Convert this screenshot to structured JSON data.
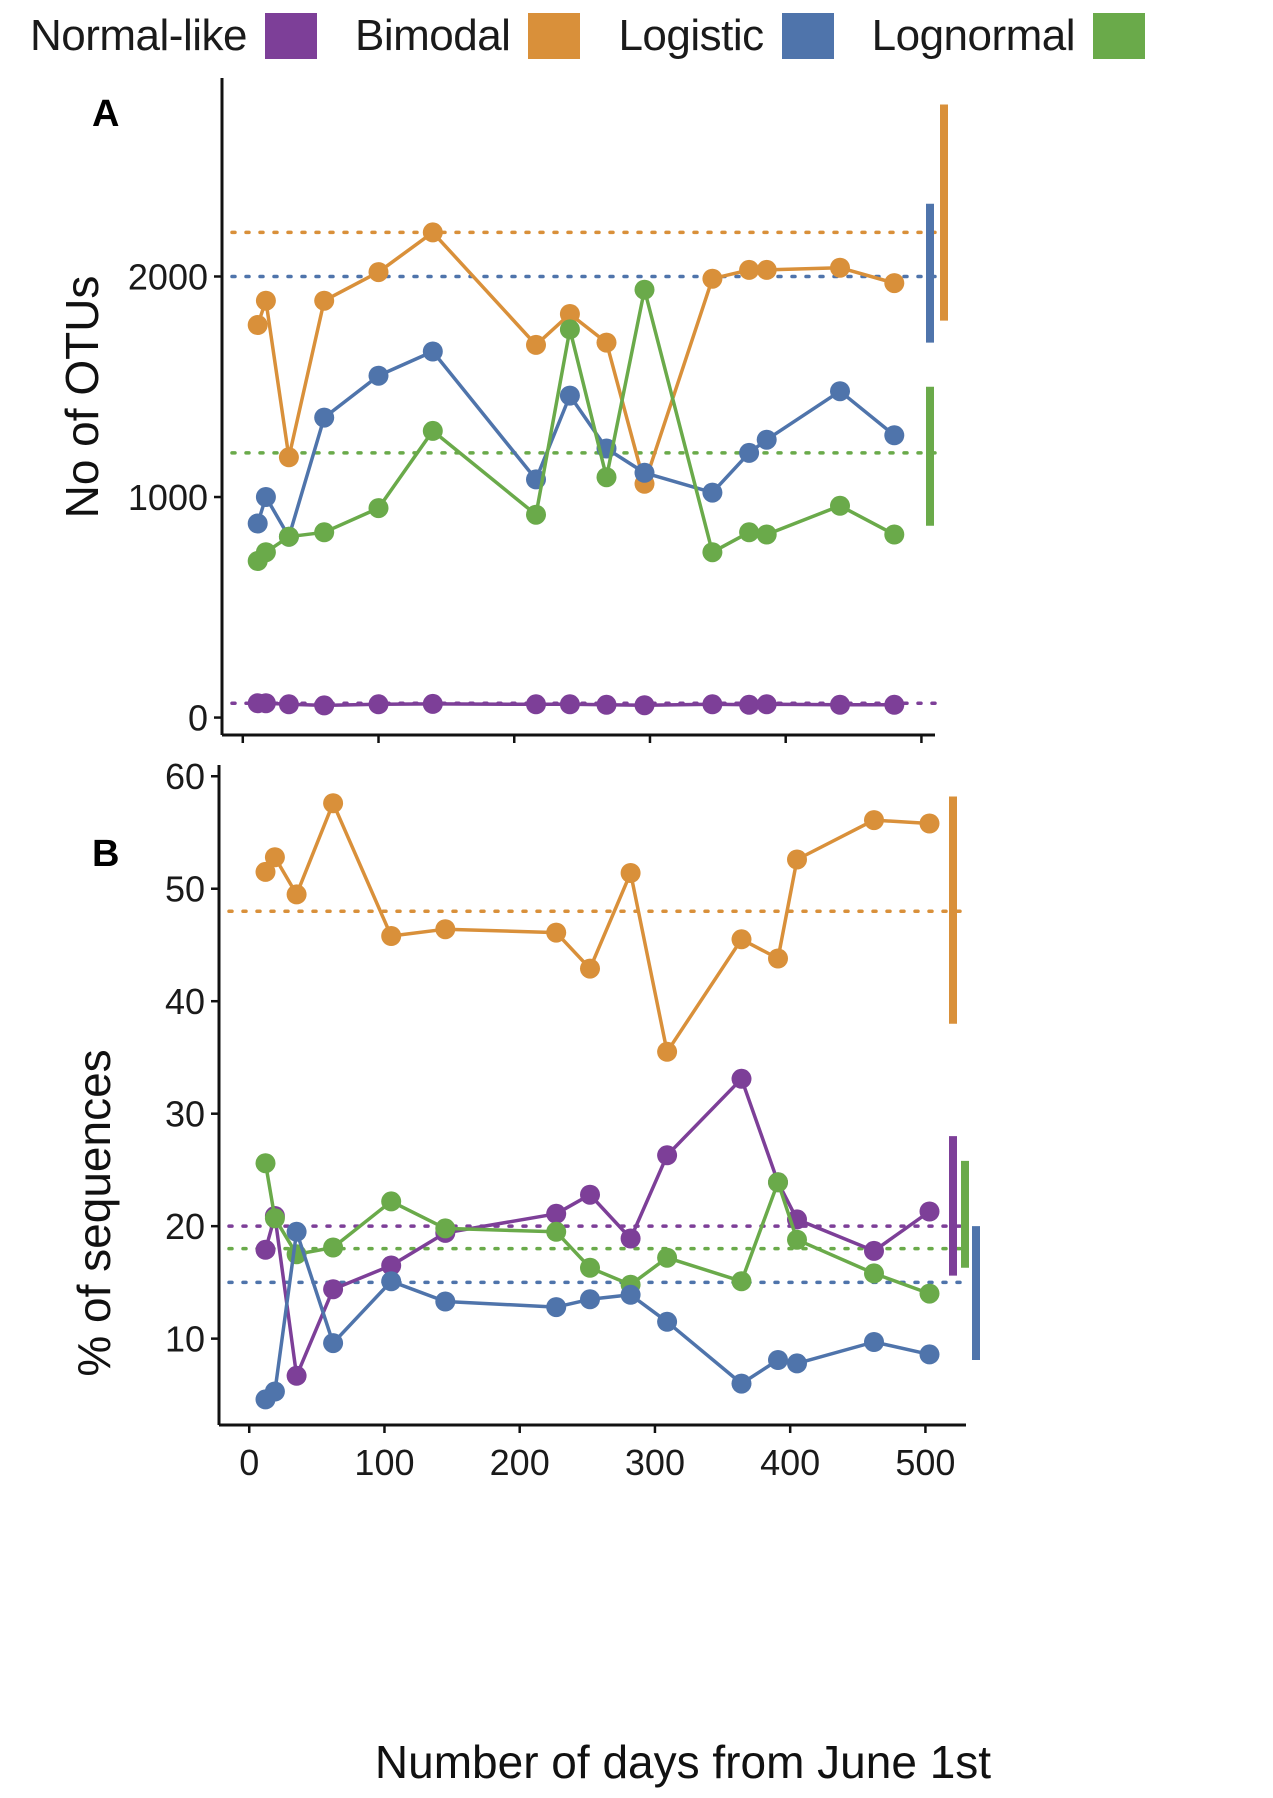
{
  "colors": {
    "Normal-like": "#7d3f98",
    "Bimodal": "#d9903a",
    "Logistic": "#4f74ab",
    "Lognormal": "#6aaa4a"
  },
  "legend": [
    {
      "label": "Normal-like",
      "color": "#7d3f98"
    },
    {
      "label": "Bimodal",
      "color": "#d9903a"
    },
    {
      "label": "Logistic",
      "color": "#4f74ab"
    },
    {
      "label": "Lognormal",
      "color": "#6aaa4a"
    }
  ],
  "xlabel": "Number of days from June 1st",
  "chart_data": [
    {
      "panel": "A",
      "type": "line",
      "ylabel": "No of OTUs",
      "xlim": [
        -5,
        510
      ],
      "ylim": [
        -70,
        2900
      ],
      "yticks": [
        0,
        1000,
        2000
      ],
      "xticks": [
        0,
        100,
        200,
        300,
        400,
        500
      ],
      "x": [
        11,
        17,
        34,
        60,
        100,
        140,
        216,
        241,
        268,
        296,
        346,
        373,
        386,
        440,
        480
      ],
      "series": [
        {
          "name": "Bimodal",
          "values": [
            1780,
            1890,
            1180,
            1890,
            2020,
            2200,
            1690,
            1830,
            1700,
            1060,
            1990,
            2030,
            2030,
            2040,
            1970
          ],
          "mean": 2200,
          "range": [
            1800,
            2780
          ]
        },
        {
          "name": "Logistic",
          "values": [
            880,
            1000,
            820,
            1360,
            1550,
            1660,
            1080,
            1460,
            1220,
            1110,
            1020,
            1200,
            1260,
            1480,
            1280
          ],
          "mean": 2000,
          "range": [
            1700,
            2330
          ]
        },
        {
          "name": "Lognormal",
          "values": [
            710,
            750,
            820,
            840,
            950,
            1300,
            920,
            1760,
            1090,
            1940,
            750,
            840,
            830,
            960,
            830
          ],
          "mean": 1200,
          "range": [
            870,
            1500
          ]
        },
        {
          "name": "Normal-like",
          "values": [
            65,
            65,
            60,
            55,
            60,
            62,
            60,
            60,
            58,
            56,
            60,
            58,
            60,
            58,
            58
          ],
          "mean": 65,
          "range": null
        }
      ]
    },
    {
      "panel": "B",
      "type": "line",
      "ylabel": "% of sequences",
      "xlim": [
        -12,
        530
      ],
      "ylim": [
        2.5,
        61
      ],
      "yticks": [
        10,
        20,
        30,
        40,
        50,
        60
      ],
      "xticks": [
        0,
        100,
        200,
        300,
        400,
        500
      ],
      "x": [
        12,
        19,
        35,
        62,
        105,
        145,
        227,
        252,
        282,
        309,
        364,
        391,
        405,
        462,
        503
      ],
      "series": [
        {
          "name": "Bimodal",
          "values": [
            51.5,
            52.8,
            49.5,
            57.6,
            45.8,
            46.4,
            46.1,
            42.9,
            51.4,
            35.5,
            45.5,
            43.8,
            52.6,
            56.1,
            55.8
          ],
          "mean": 48,
          "range": [
            38,
            58.2
          ]
        },
        {
          "name": "Normal-like",
          "values": [
            17.9,
            20.9,
            6.7,
            14.4,
            16.5,
            19.4,
            21.1,
            22.8,
            18.9,
            26.3,
            33.1,
            23.9,
            20.6,
            17.8,
            21.3
          ],
          "mean": 20,
          "range": [
            15.6,
            28
          ]
        },
        {
          "name": "Lognormal",
          "values": [
            25.6,
            20.7,
            17.5,
            18.1,
            22.2,
            19.8,
            19.5,
            16.3,
            14.8,
            17.2,
            15.1,
            23.9,
            18.8,
            15.8,
            14.0
          ],
          "mean": 18,
          "range": [
            16.3,
            25.8
          ]
        },
        {
          "name": "Logistic",
          "values": [
            4.6,
            5.3,
            19.5,
            9.6,
            15.1,
            13.3,
            12.8,
            13.5,
            13.9,
            11.5,
            6.0,
            8.1,
            7.8,
            9.7,
            8.6
          ],
          "mean": 15,
          "range": [
            8.1,
            20
          ]
        }
      ]
    }
  ]
}
